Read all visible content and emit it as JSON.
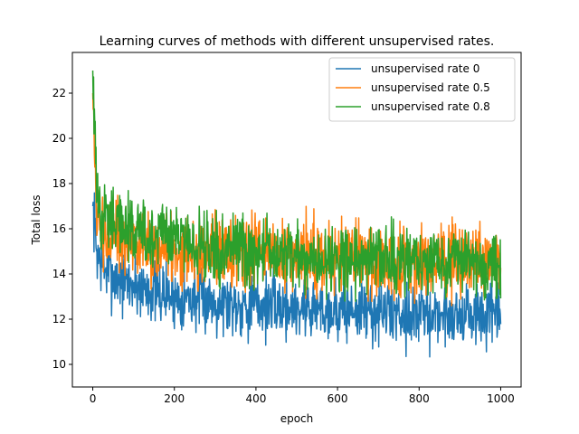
{
  "chart_data": {
    "type": "line",
    "title": "Learning curves of methods with different unsupervised rates.",
    "xlabel": "epoch",
    "ylabel": "Total loss",
    "xlim": [
      -50,
      1050
    ],
    "ylim": [
      9.0,
      23.8
    ],
    "xticks": [
      0,
      200,
      400,
      600,
      800,
      1000
    ],
    "yticks": [
      10,
      12,
      14,
      16,
      18,
      20,
      22
    ],
    "legend_position": "top-right",
    "series": [
      {
        "name": "unsupervised rate 0",
        "color": "#1f77b4",
        "x": [
          0,
          10,
          20,
          30,
          40,
          50,
          60,
          80,
          100,
          120,
          140,
          160,
          180,
          200,
          250,
          300,
          350,
          400,
          450,
          500,
          550,
          600,
          650,
          700,
          750,
          800,
          850,
          900,
          950,
          1000
        ],
        "y": [
          17.0,
          15.0,
          14.5,
          14.2,
          14.0,
          13.9,
          13.8,
          13.6,
          13.5,
          13.4,
          13.3,
          13.2,
          13.1,
          13.0,
          12.9,
          12.8,
          12.7,
          12.6,
          12.6,
          12.5,
          12.5,
          12.4,
          12.4,
          12.3,
          12.3,
          12.2,
          12.2,
          12.2,
          12.1,
          12.2
        ],
        "noise": 0.7
      },
      {
        "name": "unsupervised rate 0.5",
        "color": "#ff7f0e",
        "x": [
          0,
          10,
          20,
          30,
          40,
          50,
          60,
          80,
          100,
          120,
          140,
          160,
          180,
          200,
          250,
          300,
          350,
          400,
          450,
          500,
          550,
          600,
          650,
          700,
          750,
          800,
          850,
          900,
          950,
          1000
        ],
        "y": [
          22.0,
          16.5,
          15.8,
          15.6,
          15.5,
          15.4,
          15.4,
          15.3,
          15.3,
          15.2,
          15.2,
          15.2,
          15.1,
          15.1,
          15.0,
          15.0,
          14.9,
          14.9,
          14.8,
          14.8,
          14.8,
          14.7,
          14.7,
          14.7,
          14.6,
          14.6,
          14.6,
          14.6,
          14.5,
          14.5
        ],
        "noise": 0.8
      },
      {
        "name": "unsupervised rate 0.8",
        "color": "#2ca02c",
        "x": [
          0,
          10,
          20,
          30,
          40,
          50,
          60,
          80,
          100,
          120,
          140,
          160,
          180,
          200,
          250,
          300,
          350,
          400,
          450,
          500,
          550,
          600,
          650,
          700,
          750,
          800,
          850,
          900,
          950,
          1000
        ],
        "y": [
          23.0,
          17.5,
          16.8,
          16.5,
          16.4,
          16.3,
          16.2,
          16.0,
          15.9,
          15.8,
          15.7,
          15.6,
          15.5,
          15.5,
          15.3,
          15.2,
          15.1,
          15.0,
          14.9,
          14.8,
          14.8,
          14.7,
          14.7,
          14.6,
          14.6,
          14.5,
          14.5,
          14.5,
          14.4,
          14.4
        ],
        "noise": 0.75
      }
    ]
  }
}
